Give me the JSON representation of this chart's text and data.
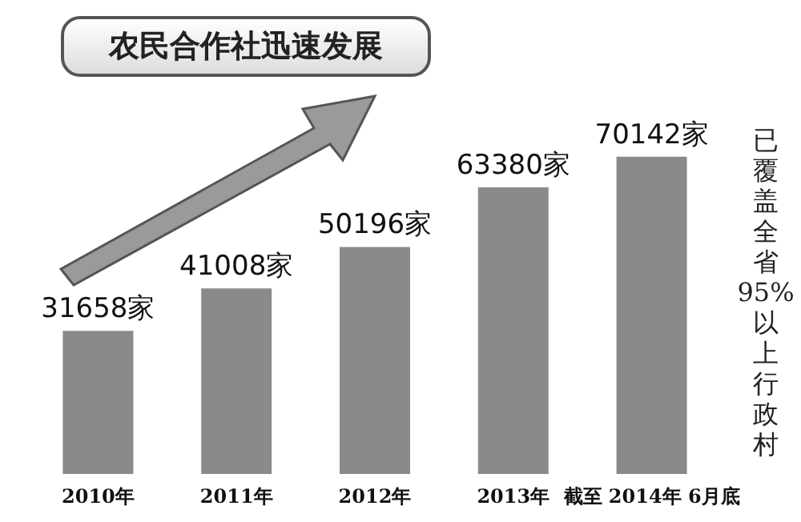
{
  "chart_data": {
    "type": "bar",
    "title": "农民合作社迅速发展",
    "categories": [
      "2010年",
      "2011年",
      "2012年",
      "2013年",
      "截至 2014年 6月底"
    ],
    "values": [
      31658,
      41008,
      50196,
      63380,
      70142
    ],
    "value_labels": [
      "31658家",
      "41008家",
      "50196家",
      "63380家",
      "70142家"
    ],
    "color": "#8a8a8a",
    "annotations": [
      "已覆盖全省95%以上行政村"
    ]
  }
}
